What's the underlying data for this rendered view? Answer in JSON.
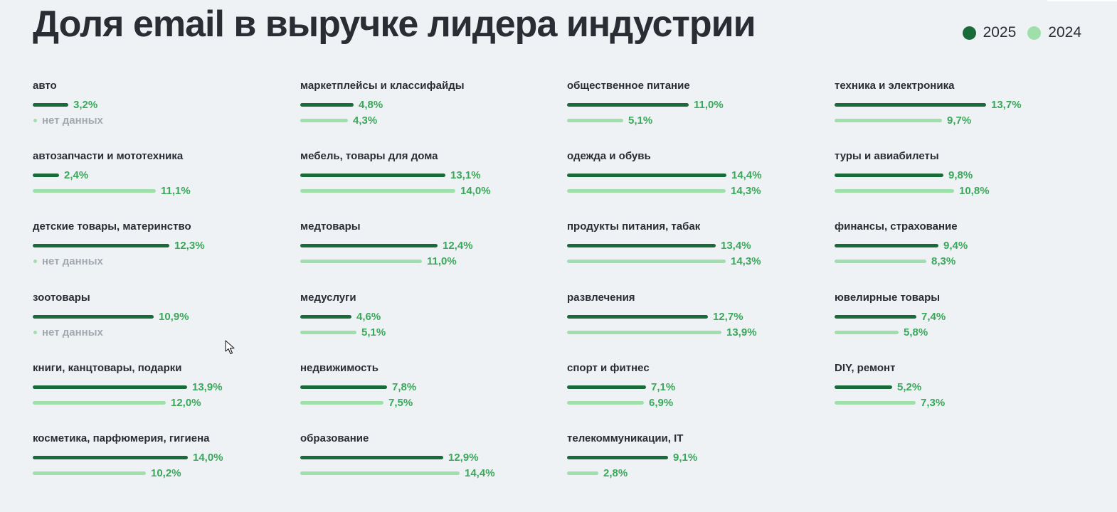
{
  "header": {
    "title": "Доля email в выручке лидера индустрии"
  },
  "legend": [
    {
      "label": "2025",
      "color": "#1a6b3a"
    },
    {
      "label": "2024",
      "color": "#9fdfaa"
    }
  ],
  "colors": {
    "bar_2025": "#1a6b3a",
    "bar_2024": "#9fdfaa",
    "value_text": "#3aa85a",
    "nodata_text": "#a3a9b1"
  },
  "no_data_label": "нет данных",
  "chart_data": {
    "type": "bar",
    "title": "Доля email в выручке лидера индустрии",
    "orientation": "horizontal",
    "unit": "%",
    "series": [
      {
        "name": "2025",
        "color": "#1a6b3a"
      },
      {
        "name": "2024",
        "color": "#9fdfaa"
      }
    ],
    "categories": [
      {
        "name": "авто",
        "v2025": 3.2,
        "v2024": null,
        "t2025": "3,2%",
        "t2024": "нет данных"
      },
      {
        "name": "автозапчасти и мототехника",
        "v2025": 2.4,
        "v2024": 11.1,
        "t2025": "2,4%",
        "t2024": "11,1%"
      },
      {
        "name": "детские товары, материнство",
        "v2025": 12.3,
        "v2024": null,
        "t2025": "12,3%",
        "t2024": "нет данных"
      },
      {
        "name": "зоотовары",
        "v2025": 10.9,
        "v2024": null,
        "t2025": "10,9%",
        "t2024": "нет данных"
      },
      {
        "name": "книги, канцтовары, подарки",
        "v2025": 13.9,
        "v2024": 12.0,
        "t2025": "13,9%",
        "t2024": "12,0%"
      },
      {
        "name": "косметика, парфюмерия, гигиена",
        "v2025": 14.0,
        "v2024": 10.2,
        "t2025": "14,0%",
        "t2024": "10,2%"
      },
      {
        "name": "маркетплейсы и классифайды",
        "v2025": 4.8,
        "v2024": 4.3,
        "t2025": "4,8%",
        "t2024": "4,3%"
      },
      {
        "name": "мебель, товары для дома",
        "v2025": 13.1,
        "v2024": 14.0,
        "t2025": "13,1%",
        "t2024": "14,0%"
      },
      {
        "name": "медтовары",
        "v2025": 12.4,
        "v2024": 11.0,
        "t2025": "12,4%",
        "t2024": "11,0%"
      },
      {
        "name": "медуслуги",
        "v2025": 4.6,
        "v2024": 5.1,
        "t2025": "4,6%",
        "t2024": "5,1%"
      },
      {
        "name": "недвижимость",
        "v2025": 7.8,
        "v2024": 7.5,
        "t2025": "7,8%",
        "t2024": "7,5%"
      },
      {
        "name": "образование",
        "v2025": 12.9,
        "v2024": 14.4,
        "t2025": "12,9%",
        "t2024": "14,4%"
      },
      {
        "name": "общественное питание",
        "v2025": 11.0,
        "v2024": 5.1,
        "t2025": "11,0%",
        "t2024": "5,1%"
      },
      {
        "name": "одежда и обувь",
        "v2025": 14.4,
        "v2024": 14.3,
        "t2025": "14,4%",
        "t2024": "14,3%"
      },
      {
        "name": "продукты питания, табак",
        "v2025": 13.4,
        "v2024": 14.3,
        "t2025": "13,4%",
        "t2024": "14,3%"
      },
      {
        "name": "развлечения",
        "v2025": 12.7,
        "v2024": 13.9,
        "t2025": "12,7%",
        "t2024": "13,9%"
      },
      {
        "name": "спорт и фитнес",
        "v2025": 7.1,
        "v2024": 6.9,
        "t2025": "7,1%",
        "t2024": "6,9%"
      },
      {
        "name": "телекоммуникации, IT",
        "v2025": 9.1,
        "v2024": 2.8,
        "t2025": "9,1%",
        "t2024": "2,8%"
      },
      {
        "name": "техника и электроника",
        "v2025": 13.7,
        "v2024": 9.7,
        "t2025": "13,7%",
        "t2024": "9,7%"
      },
      {
        "name": "туры и авиабилеты",
        "v2025": 9.8,
        "v2024": 10.8,
        "t2025": "9,8%",
        "t2024": "10,8%"
      },
      {
        "name": "финансы, страхование",
        "v2025": 9.4,
        "v2024": 8.3,
        "t2025": "9,4%",
        "t2024": "8,3%"
      },
      {
        "name": "ювелирные товары",
        "v2025": 7.4,
        "v2024": 5.8,
        "t2025": "7,4%",
        "t2024": "5,8%"
      },
      {
        "name": "DIY, ремонт",
        "v2025": 5.2,
        "v2024": 7.3,
        "t2025": "5,2%",
        "t2024": "7,3%"
      }
    ]
  }
}
